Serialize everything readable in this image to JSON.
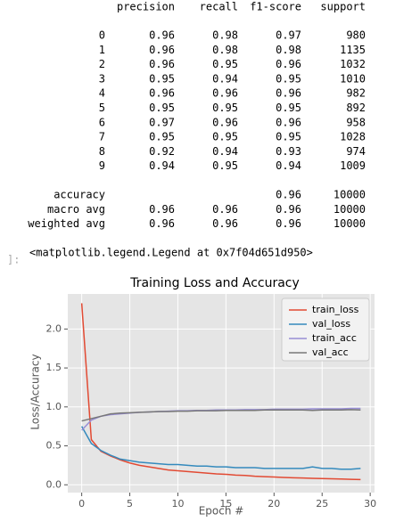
{
  "report": {
    "header": [
      "precision",
      "recall",
      "f1-score",
      "support"
    ],
    "rows": [
      [
        "0",
        "0.96",
        "0.98",
        "0.97",
        "980"
      ],
      [
        "1",
        "0.96",
        "0.98",
        "0.98",
        "1135"
      ],
      [
        "2",
        "0.96",
        "0.95",
        "0.96",
        "1032"
      ],
      [
        "3",
        "0.95",
        "0.94",
        "0.95",
        "1010"
      ],
      [
        "4",
        "0.96",
        "0.96",
        "0.96",
        "982"
      ],
      [
        "5",
        "0.95",
        "0.95",
        "0.95",
        "892"
      ],
      [
        "6",
        "0.97",
        "0.96",
        "0.96",
        "958"
      ],
      [
        "7",
        "0.95",
        "0.95",
        "0.95",
        "1028"
      ],
      [
        "8",
        "0.92",
        "0.94",
        "0.93",
        "974"
      ],
      [
        "9",
        "0.94",
        "0.95",
        "0.94",
        "1009"
      ]
    ],
    "summary": [
      [
        "accuracy",
        null,
        null,
        "0.96",
        "10000"
      ],
      [
        "macro avg",
        "0.96",
        "0.96",
        "0.96",
        "10000"
      ],
      [
        "weighted avg",
        "0.96",
        "0.96",
        "0.96",
        "10000"
      ]
    ]
  },
  "output_prompt": "]:",
  "output_text": "<matplotlib.legend.Legend at 0x7f04d651d950>",
  "chart_data": {
    "type": "line",
    "title": "Training Loss and Accuracy",
    "x_label": "Epoch #",
    "y_label": "Loss/Accuracy",
    "x": [
      0,
      1,
      2,
      3,
      4,
      5,
      6,
      7,
      8,
      9,
      10,
      11,
      12,
      13,
      14,
      15,
      16,
      17,
      18,
      19,
      20,
      21,
      22,
      23,
      24,
      25,
      26,
      27,
      28,
      29
    ],
    "series": [
      {
        "name": "train_loss",
        "color": "#E24A33",
        "values": [
          2.33,
          0.58,
          0.43,
          0.37,
          0.32,
          0.28,
          0.25,
          0.23,
          0.21,
          0.19,
          0.18,
          0.17,
          0.16,
          0.15,
          0.14,
          0.135,
          0.125,
          0.12,
          0.11,
          0.105,
          0.1,
          0.095,
          0.09,
          0.087,
          0.083,
          0.08,
          0.077,
          0.074,
          0.07,
          0.067
        ]
      },
      {
        "name": "val_loss",
        "color": "#348ABD",
        "values": [
          0.75,
          0.53,
          0.44,
          0.38,
          0.33,
          0.31,
          0.29,
          0.28,
          0.27,
          0.26,
          0.26,
          0.25,
          0.24,
          0.24,
          0.23,
          0.23,
          0.22,
          0.22,
          0.22,
          0.21,
          0.21,
          0.21,
          0.21,
          0.21,
          0.23,
          0.21,
          0.21,
          0.2,
          0.2,
          0.21
        ]
      },
      {
        "name": "train_acc",
        "color": "#988ED5",
        "values": [
          0.7,
          0.83,
          0.88,
          0.9,
          0.91,
          0.92,
          0.93,
          0.935,
          0.94,
          0.945,
          0.95,
          0.95,
          0.955,
          0.955,
          0.96,
          0.96,
          0.96,
          0.965,
          0.965,
          0.965,
          0.97,
          0.97,
          0.97,
          0.97,
          0.975,
          0.975,
          0.975,
          0.975,
          0.98,
          0.98
        ]
      },
      {
        "name": "val_acc",
        "color": "#777777",
        "values": [
          0.82,
          0.85,
          0.88,
          0.91,
          0.92,
          0.925,
          0.93,
          0.935,
          0.94,
          0.94,
          0.945,
          0.945,
          0.95,
          0.95,
          0.95,
          0.955,
          0.955,
          0.955,
          0.955,
          0.96,
          0.96,
          0.96,
          0.96,
          0.96,
          0.955,
          0.96,
          0.96,
          0.96,
          0.965,
          0.96
        ]
      }
    ],
    "xlim": [
      -1.45,
      30.45
    ],
    "ylim": [
      -0.1,
      2.45
    ],
    "xticks": [
      0,
      5,
      10,
      15,
      20,
      25,
      30
    ],
    "yticks": [
      {
        "value": 0,
        "label": "0.0"
      },
      {
        "value": 0.5,
        "label": "0.5"
      },
      {
        "value": 1,
        "label": "1.0"
      },
      {
        "value": 1.5,
        "label": "1.5"
      },
      {
        "value": 2,
        "label": "2.0"
      }
    ],
    "grid": true,
    "legend": "upper right",
    "background": "#E5E5E5"
  }
}
